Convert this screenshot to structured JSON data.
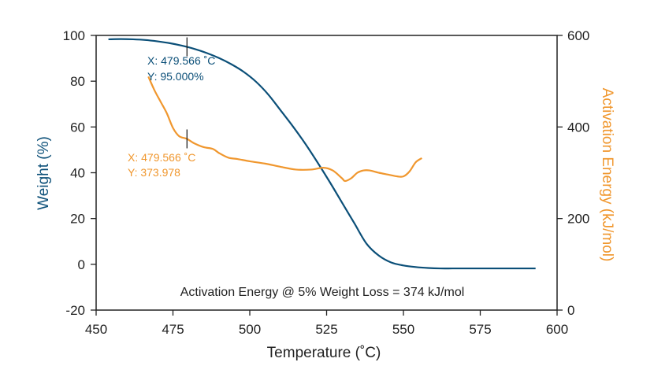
{
  "colors": {
    "weight": "#0b4f78",
    "activation": "#f0972e",
    "axis": "#222222"
  },
  "chart_data": {
    "type": "line",
    "xlabel": "Temperature (˚C)",
    "ylabel": "Weight (%)",
    "y2label": "Activation Energy (kJ/mol)",
    "xlim": [
      450,
      600
    ],
    "ylim": [
      -20,
      100
    ],
    "y2lim": [
      0,
      600
    ],
    "xticks": [
      "450",
      "475",
      "500",
      "525",
      "550",
      "575",
      "600"
    ],
    "yticks": [
      "100",
      "80",
      "60",
      "40",
      "20",
      "0",
      "-20"
    ],
    "y2ticks": [
      "600",
      "400",
      "200",
      "0"
    ],
    "grid": false,
    "series": [
      {
        "axis": "left",
        "color": "#0b4f78",
        "x": [
          454,
          458,
          462,
          466,
          470,
          474,
          478,
          482,
          486,
          490,
          494,
          498,
          502,
          506,
          510,
          514,
          518,
          522,
          526,
          530,
          534,
          538,
          542,
          546,
          550,
          554,
          558,
          562,
          566,
          570,
          580,
          593
        ],
        "y": [
          98.3,
          98.4,
          98.3,
          98.0,
          97.4,
          96.6,
          95.5,
          94.1,
          92.3,
          90.1,
          87.4,
          84.1,
          79.8,
          74.2,
          67.3,
          60.3,
          52.8,
          44.6,
          36.0,
          27.0,
          18.0,
          9.0,
          3.8,
          0.8,
          -0.5,
          -1.2,
          -1.6,
          -1.8,
          -1.8,
          -1.8,
          -1.8,
          -1.8
        ]
      },
      {
        "axis": "right",
        "color": "#f0972e",
        "x": [
          467,
          469,
          471,
          473,
          475,
          477,
          479.566,
          482,
          485,
          488,
          490,
          493,
          496,
          500,
          505,
          510,
          515,
          520,
          524,
          527,
          530,
          531,
          533,
          535,
          537,
          539,
          542,
          545,
          548,
          550,
          552,
          554,
          556
        ],
        "y": [
          510,
          480,
          455,
          430,
          398,
          380,
          374,
          364,
          356,
          352,
          343,
          333,
          330,
          325,
          320,
          313,
          307,
          307,
          311,
          305,
          288,
          282,
          288,
          300,
          305,
          305,
          300,
          296,
          292,
          292,
          303,
          323,
          332
        ]
      }
    ],
    "annotations": [
      {
        "series": "weight",
        "x_label": "X: 479.566 ˚C",
        "y_label": "Y: 95.000%",
        "marker_x": 479.566,
        "marker_y": 95.0
      },
      {
        "series": "activation",
        "x_label": "X: 479.566 ˚C",
        "y_label": "Y: 373.978",
        "marker_x": 479.566,
        "marker_y": 373.978
      }
    ],
    "note": "Activation Energy @ 5% Weight Loss = 374 kJ/mol"
  }
}
